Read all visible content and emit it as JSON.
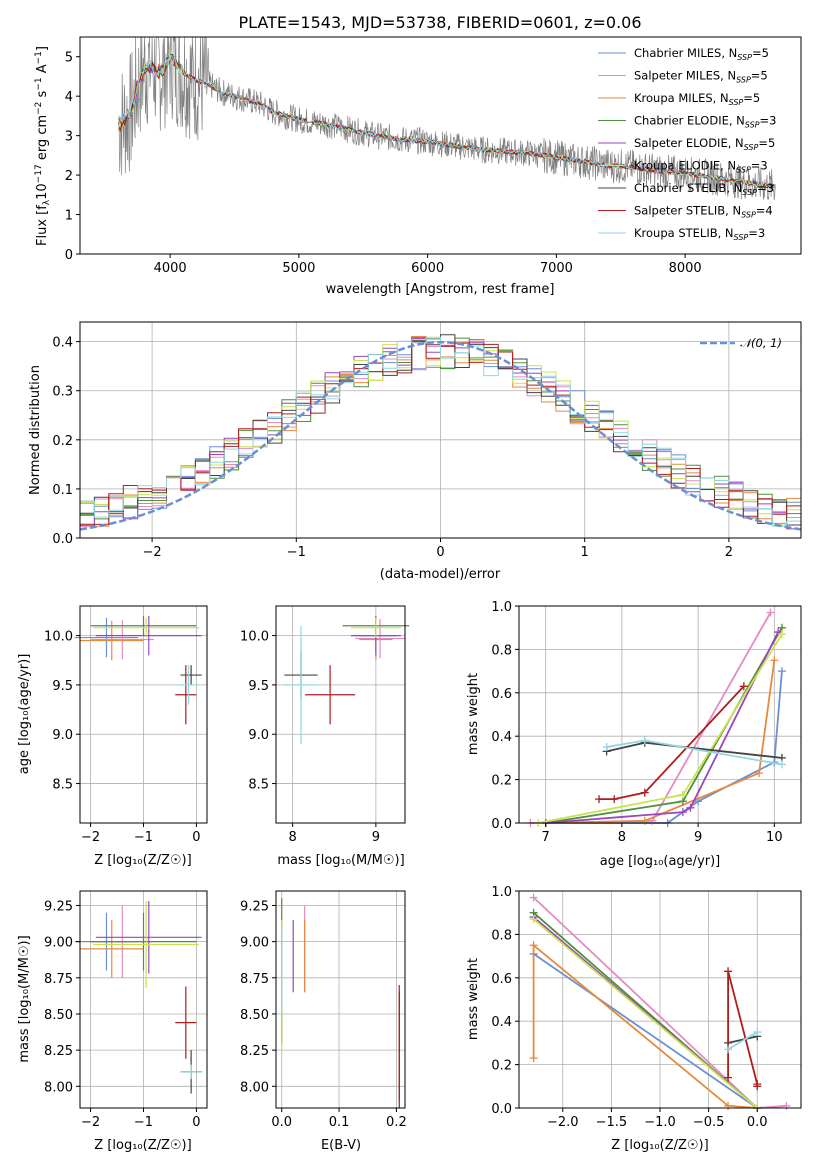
{
  "title": "PLATE=1543, MJD=53738, FIBERID=0601, z=0.06",
  "series_colors": [
    "#6a8fd6",
    "#e58ac3",
    "#e88a3c",
    "#4f8f3f",
    "#9a46c2",
    "#c9e34f",
    "#444444",
    "#b01c1c",
    "#8fd8e0"
  ],
  "data_color": "#808080",
  "chart_data": [
    {
      "id": "spectrum",
      "type": "line",
      "xlabel": "wavelength [Angstrom, rest frame]",
      "ylabel": "Flux [f",
      "ylabel_sub": "λ",
      "ylabel_rest": "10",
      "ylabel_exp1": "−17",
      "ylabel_mid": " erg cm",
      "ylabel_exp2": "−2",
      "ylabel_mid2": " s",
      "ylabel_exp3": "−1",
      "ylabel_mid3": " A",
      "ylabel_exp4": "−1",
      "ylabel_end": "]",
      "xlim": [
        3300,
        8900
      ],
      "ylim": [
        0,
        5.5
      ],
      "xticks": [
        "4000",
        "5000",
        "6000",
        "7000",
        "8000"
      ],
      "yticks": [
        "0",
        "1",
        "2",
        "3",
        "4",
        "5"
      ],
      "x": [
        3600,
        3650,
        3700,
        3750,
        3800,
        3850,
        3900,
        3950,
        4000,
        4100,
        4200,
        4300,
        4400,
        4500,
        4600,
        4700,
        4800,
        4900,
        5000,
        5200,
        5400,
        5600,
        5800,
        6000,
        6200,
        6400,
        6600,
        6800,
        7000,
        7200,
        7400,
        7600,
        7800,
        8000,
        8200,
        8400,
        8600,
        8700
      ],
      "model": [
        3.3,
        3.4,
        3.6,
        4.3,
        4.7,
        4.8,
        4.6,
        4.7,
        5.0,
        4.6,
        4.4,
        4.3,
        4.1,
        4.0,
        3.9,
        3.8,
        3.6,
        3.5,
        3.4,
        3.3,
        3.15,
        3.0,
        2.9,
        2.85,
        2.75,
        2.65,
        2.6,
        2.55,
        2.45,
        2.35,
        2.25,
        2.2,
        2.1,
        2.05,
        1.95,
        1.85,
        1.75,
        1.7
      ],
      "legend": [
        {
          "label": "Chabrier MILES, N",
          "n": "5"
        },
        {
          "label": "Salpeter MILES, N",
          "n": "5"
        },
        {
          "label": "Kroupa MILES, N",
          "n": "5"
        },
        {
          "label": "Chabrier ELODIE, N",
          "n": "3"
        },
        {
          "label": "Salpeter ELODIE, N",
          "n": "5"
        },
        {
          "label": "Kroupa ELODIE, N",
          "n": "3"
        },
        {
          "label": "Chabrier STELIB, N",
          "n": "3"
        },
        {
          "label": "Salpeter STELIB, N",
          "n": "4"
        },
        {
          "label": "Kroupa STELIB, N",
          "n": "3"
        }
      ],
      "legend_sub": "SSP",
      "legend_position": "right"
    },
    {
      "id": "residuals",
      "type": "histogram",
      "xlabel": "(data-model)/error",
      "ylabel": "Normed distribution",
      "xlim": [
        -2.5,
        2.5
      ],
      "ylim": [
        0,
        0.44
      ],
      "xticks": [
        "−2",
        "−1",
        "0",
        "1",
        "2"
      ],
      "yticks": [
        "0.0",
        "0.1",
        "0.2",
        "0.3",
        "0.4"
      ],
      "legend": "𝒩(0, 1)",
      "legend_position": "top-right"
    },
    {
      "id": "age_vs_Z",
      "type": "errorbar",
      "xlabel": "Z [log₁₀(Z/Z☉)]",
      "ylabel": "age  [log₁₀(age/yr)]",
      "xlim": [
        -2.2,
        0.2
      ],
      "ylim": [
        8.1,
        10.3
      ],
      "xticks": [
        "−2",
        "−1",
        "0"
      ],
      "yticks": [
        "8.5",
        "9.0",
        "9.5",
        "10.0"
      ],
      "points": [
        {
          "x": -1.7,
          "y": 9.98,
          "xerr": 0.6,
          "yerr": 0.2
        },
        {
          "x": -1.4,
          "y": 9.96,
          "xerr": 0.6,
          "yerr": 0.2
        },
        {
          "x": -1.6,
          "y": 9.95,
          "xerr": 0.6,
          "yerr": 0.2
        },
        {
          "x": -1.0,
          "y": 10.1,
          "xerr": 1.0,
          "yerr": 0.1
        },
        {
          "x": -0.9,
          "y": 10.0,
          "xerr": 1.0,
          "yerr": 0.2
        },
        {
          "x": -0.95,
          "y": 10.08,
          "xerr": 1.0,
          "yerr": 0.1
        },
        {
          "x": -0.1,
          "y": 9.6,
          "xerr": 0.2,
          "yerr": 0.1
        },
        {
          "x": -0.2,
          "y": 9.4,
          "xerr": 0.2,
          "yerr": 0.3
        },
        {
          "x": -0.15,
          "y": 9.5,
          "xerr": 0.2,
          "yerr": 0.2
        }
      ]
    },
    {
      "id": "age_vs_mass",
      "type": "errorbar",
      "xlabel": "mass [log₁₀(M/M☉)]",
      "ylabel": "",
      "xlim": [
        7.8,
        9.35
      ],
      "ylim": [
        8.1,
        10.3
      ],
      "xticks": [
        "8",
        "9"
      ],
      "yticks": [
        "8.5",
        "9.0",
        "9.5",
        "10.0"
      ]
    },
    {
      "id": "weight_vs_age",
      "type": "line",
      "xlabel": "age  [log₁₀(age/yr)]",
      "ylabel": "mass weight",
      "xlim": [
        6.65,
        10.35
      ],
      "ylim": [
        0,
        1.0
      ],
      "xticks": [
        "7",
        "8",
        "9",
        "10"
      ],
      "yticks": [
        "0.0",
        "0.2",
        "0.4",
        "0.6",
        "0.8",
        "1.0"
      ],
      "series": [
        {
          "x": [
            7.0,
            8.6,
            9.0,
            10.0,
            10.1
          ],
          "y": [
            0.0,
            0.0,
            0.1,
            0.28,
            0.7
          ]
        },
        {
          "x": [
            6.8,
            8.4,
            9.95
          ],
          "y": [
            0.0,
            0.01,
            0.97
          ]
        },
        {
          "x": [
            7.0,
            8.3,
            9.8,
            10.0
          ],
          "y": [
            0.0,
            0.01,
            0.23,
            0.75
          ]
        },
        {
          "x": [
            7.0,
            8.8,
            10.1
          ],
          "y": [
            0.0,
            0.1,
            0.9
          ]
        },
        {
          "x": [
            7.0,
            8.8,
            8.9,
            10.05
          ],
          "y": [
            0.0,
            0.05,
            0.07,
            0.88
          ]
        },
        {
          "x": [
            6.9,
            8.8,
            10.1
          ],
          "y": [
            0.0,
            0.13,
            0.87
          ]
        },
        {
          "x": [
            7.8,
            8.3,
            10.1
          ],
          "y": [
            0.33,
            0.37,
            0.3
          ]
        },
        {
          "x": [
            7.7,
            7.9,
            8.3,
            9.6
          ],
          "y": [
            0.11,
            0.11,
            0.14,
            0.63
          ]
        },
        {
          "x": [
            7.8,
            8.3,
            10.1
          ],
          "y": [
            0.35,
            0.38,
            0.27
          ]
        }
      ]
    },
    {
      "id": "mass_vs_Z",
      "type": "errorbar",
      "xlabel": "Z [log₁₀(Z/Z☉)]",
      "ylabel": "mass [log₁₀(M/M☉)]",
      "xlim": [
        -2.2,
        0.2
      ],
      "ylim": [
        7.85,
        9.35
      ],
      "xticks": [
        "−2",
        "−1",
        "0"
      ],
      "yticks": [
        "8.00",
        "8.25",
        "8.50",
        "8.75",
        "9.00",
        "9.25"
      ]
    },
    {
      "id": "mass_vs_ebv",
      "type": "errorbar",
      "xlabel": "E(B-V)",
      "ylabel": "",
      "xlim": [
        -0.01,
        0.215
      ],
      "ylim": [
        7.85,
        9.35
      ],
      "xticks": [
        "0.0",
        "0.1",
        "0.2"
      ],
      "yticks": [
        "8.00",
        "8.25",
        "8.50",
        "8.75",
        "9.00",
        "9.25"
      ]
    },
    {
      "id": "weight_vs_Z",
      "type": "line",
      "xlabel": "Z [log₁₀(Z/Z☉)]",
      "ylabel": "mass weight",
      "xlim": [
        -2.45,
        0.45
      ],
      "ylim": [
        0,
        1.0
      ],
      "xticks": [
        "−2.0",
        "−1.5",
        "−1.0",
        "−0.5",
        "0.0"
      ],
      "yticks": [
        "0.0",
        "0.2",
        "0.4",
        "0.6",
        "0.8",
        "1.0"
      ],
      "series": [
        {
          "x": [
            -2.3,
            0.0
          ],
          "y": [
            0.71,
            0.0
          ]
        },
        {
          "x": [
            -2.3,
            0.0,
            0.3
          ],
          "y": [
            0.97,
            0.0,
            0.01
          ]
        },
        {
          "x": [
            -2.3,
            -2.3,
            -0.3,
            0.0
          ],
          "y": [
            0.23,
            0.75,
            0.01,
            0.0
          ]
        },
        {
          "x": [
            -2.3,
            0.0
          ],
          "y": [
            0.9,
            0.0
          ]
        },
        {
          "x": [
            -2.3,
            0.0
          ],
          "y": [
            0.88,
            0.0
          ]
        },
        {
          "x": [
            -2.3,
            0.0
          ],
          "y": [
            0.87,
            0.0
          ]
        },
        {
          "x": [
            -0.3,
            0.0
          ],
          "y": [
            0.3,
            0.33
          ]
        },
        {
          "x": [
            -0.3,
            -0.3,
            0.0,
            0.0
          ],
          "y": [
            0.14,
            0.63,
            0.11,
            0.1
          ]
        },
        {
          "x": [
            -0.3,
            0.0
          ],
          "y": [
            0.27,
            0.35
          ]
        }
      ]
    }
  ]
}
